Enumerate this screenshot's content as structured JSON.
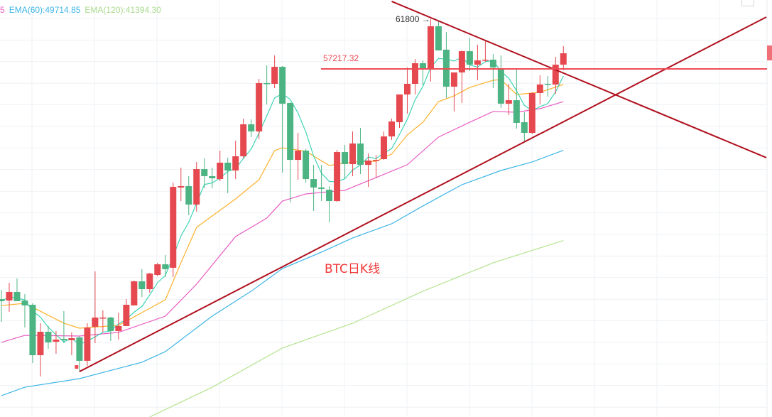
{
  "legend": {
    "tail_label": "5",
    "ema60": "EMA(60):49714.85",
    "ema120": "EMA(120):41394.30"
  },
  "colors": {
    "up": "#e5484f",
    "down": "#4cb482",
    "ma5": "#3ed3b4",
    "orange_ma": "#fbb02a",
    "pink_ma": "#e95bc3",
    "ema60": "#3db5e6",
    "ema120": "#b6e38f",
    "trendline": "#b0101e",
    "level_line": "#ef4b55"
  },
  "chart_data": {
    "type": "candlestick",
    "title": "BTC日K线",
    "price_scale": {
      "ref_price": 57217.32,
      "high_label": 61800
    },
    "annotations": {
      "level_label": "57217.32",
      "high_label": "61800 →",
      "chart_title": "BTC日K线"
    },
    "candles": [
      [
        35990,
        36850,
        33900,
        35800
      ],
      [
        35860,
        37500,
        34820,
        36650
      ],
      [
        36650,
        37890,
        35800,
        35800
      ],
      [
        35860,
        36450,
        33370,
        35410
      ],
      [
        35470,
        35600,
        30100,
        30820
      ],
      [
        30820,
        33770,
        28860,
        32980
      ],
      [
        32980,
        33510,
        31410,
        32000
      ],
      [
        32060,
        33050,
        30950,
        32260
      ],
      [
        32330,
        34880,
        31930,
        32200
      ],
      [
        32200,
        32920,
        30820,
        32390
      ],
      [
        32460,
        32590,
        29310,
        30300
      ],
      [
        30300,
        33770,
        29840,
        33370
      ],
      [
        33440,
        38550,
        31930,
        34290
      ],
      [
        34230,
        34950,
        32920,
        34290
      ],
      [
        34290,
        34360,
        32130,
        33050
      ],
      [
        33050,
        34750,
        32260,
        33510
      ],
      [
        33510,
        35990,
        33510,
        35470
      ],
      [
        35410,
        37700,
        35410,
        37630
      ],
      [
        37630,
        38750,
        36190,
        36910
      ],
      [
        36910,
        38420,
        36580,
        38350
      ],
      [
        38220,
        39340,
        38090,
        39200
      ],
      [
        39200,
        40060,
        38030,
        38750
      ],
      [
        38880,
        46740,
        38030,
        46340
      ],
      [
        46280,
        48110,
        45030,
        46410
      ],
      [
        46410,
        47330,
        43720,
        44710
      ],
      [
        44710,
        48640,
        44050,
        47980
      ],
      [
        47980,
        48960,
        46210,
        47330
      ],
      [
        47330,
        48110,
        46210,
        47130
      ],
      [
        47060,
        49680,
        46870,
        48570
      ],
      [
        48570,
        49030,
        45750,
        47850
      ],
      [
        47850,
        50600,
        47060,
        49160
      ],
      [
        49160,
        52630,
        48960,
        52110
      ],
      [
        52110,
        52570,
        50930,
        51450
      ],
      [
        51450,
        56300,
        50730,
        55910
      ],
      [
        55910,
        57540,
        53940,
        55840
      ],
      [
        55840,
        58460,
        55450,
        57410
      ],
      [
        57410,
        57480,
        47650,
        54010
      ],
      [
        54070,
        54140,
        44900,
        48830
      ],
      [
        48830,
        51320,
        47000,
        49680
      ],
      [
        49680,
        49820,
        46740,
        47060
      ],
      [
        47060,
        48370,
        44120,
        46280
      ],
      [
        46280,
        48370,
        45030,
        46150
      ],
      [
        46080,
        46410,
        43070,
        45030
      ],
      [
        45030,
        49750,
        44970,
        49550
      ],
      [
        49550,
        50210,
        47130,
        48440
      ],
      [
        48440,
        51450,
        47330,
        50340
      ],
      [
        50340,
        51780,
        47520,
        48370
      ],
      [
        48370,
        49420,
        46340,
        48770
      ],
      [
        48770,
        49290,
        47130,
        48830
      ],
      [
        48900,
        51450,
        48830,
        50990
      ],
      [
        50990,
        52630,
        50670,
        52370
      ],
      [
        52300,
        54860,
        51780,
        54860
      ],
      [
        54860,
        57350,
        53090,
        55840
      ],
      [
        55840,
        58130,
        54860,
        57740
      ],
      [
        57740,
        58000,
        55710,
        57220
      ],
      [
        57220,
        61800,
        56040,
        61150
      ],
      [
        61150,
        61610,
        58920,
        58920
      ],
      [
        58990,
        60620,
        54530,
        55580
      ],
      [
        55580,
        56890,
        53290,
        56890
      ],
      [
        56890,
        58920,
        54070,
        58850
      ],
      [
        58850,
        60100,
        57020,
        57610
      ],
      [
        57610,
        59440,
        56170,
        58000
      ],
      [
        58000,
        59770,
        57870,
        58070
      ],
      [
        58070,
        58590,
        55450,
        57350
      ],
      [
        57280,
        58460,
        53610,
        54010
      ],
      [
        54010,
        55840,
        52960,
        54330
      ],
      [
        54330,
        57220,
        51710,
        52240
      ],
      [
        52300,
        53220,
        50470,
        51320
      ],
      [
        51320,
        55060,
        51190,
        54990
      ],
      [
        54990,
        56630,
        53940,
        55780
      ],
      [
        55840,
        56560,
        54660,
        55780
      ],
      [
        55780,
        58330,
        54920,
        57610
      ],
      [
        57610,
        59310,
        57090,
        58660
      ]
    ],
    "candle_fields": [
      "open",
      "high",
      "low",
      "close"
    ],
    "series": [
      {
        "name": "EMA(60)",
        "points": [
          [
            0,
            27090
          ],
          [
            3,
            27870
          ],
          [
            10,
            28660
          ],
          [
            18,
            30170
          ],
          [
            21,
            31150
          ],
          [
            27,
            34420
          ],
          [
            32,
            36720
          ],
          [
            36,
            38810
          ],
          [
            41,
            40320
          ],
          [
            45,
            41630
          ],
          [
            50,
            42940
          ],
          [
            54,
            44580
          ],
          [
            59,
            46540
          ],
          [
            64,
            47850
          ],
          [
            68,
            48640
          ],
          [
            72,
            49714.85
          ]
        ]
      },
      {
        "name": "EMA(120)",
        "points": [
          [
            19,
            25120
          ],
          [
            27,
            27870
          ],
          [
            36,
            31480
          ],
          [
            45,
            33770
          ],
          [
            54,
            36720
          ],
          [
            63,
            39340
          ],
          [
            72,
            41394.3
          ]
        ]
      },
      {
        "points": [
          [
            0,
            35400
          ],
          [
            3,
            35600
          ],
          [
            8,
            33770
          ],
          [
            10,
            33310
          ],
          [
            15,
            33570
          ],
          [
            21,
            35930
          ],
          [
            23,
            39340
          ],
          [
            25,
            42610
          ],
          [
            30,
            45230
          ],
          [
            33,
            47000
          ],
          [
            35,
            49680
          ],
          [
            36,
            49950
          ],
          [
            39,
            49620
          ],
          [
            42,
            48310
          ],
          [
            45,
            48640
          ],
          [
            48,
            48700
          ],
          [
            50,
            49360
          ],
          [
            52,
            51130
          ],
          [
            54,
            52300
          ],
          [
            56,
            54200
          ],
          [
            58,
            54730
          ],
          [
            60,
            55510
          ],
          [
            63,
            56170
          ],
          [
            64,
            56230
          ],
          [
            66,
            54860
          ],
          [
            69,
            55060
          ],
          [
            72,
            55780
          ]
        ]
      },
      {
        "points": [
          [
            0,
            32000
          ],
          [
            3,
            32650
          ],
          [
            10,
            32590
          ],
          [
            15,
            32920
          ],
          [
            21,
            34420
          ],
          [
            25,
            37370
          ],
          [
            30,
            41760
          ],
          [
            34,
            43460
          ],
          [
            36,
            45030
          ],
          [
            39,
            45690
          ],
          [
            42,
            45890
          ],
          [
            44,
            46020
          ],
          [
            48,
            47200
          ],
          [
            52,
            48380
          ],
          [
            56,
            50930
          ],
          [
            60,
            52300
          ],
          [
            63,
            53290
          ],
          [
            66,
            53220
          ],
          [
            69,
            53550
          ],
          [
            72,
            54200
          ]
        ]
      }
    ],
    "trendlines": [
      {
        "from": [
          10,
          29310
        ],
        "to": [
          98,
          62000
        ]
      },
      {
        "from": [
          50,
          63440
        ],
        "to": [
          98,
          49030
        ]
      }
    ],
    "level": 57217.32,
    "grid": true
  }
}
